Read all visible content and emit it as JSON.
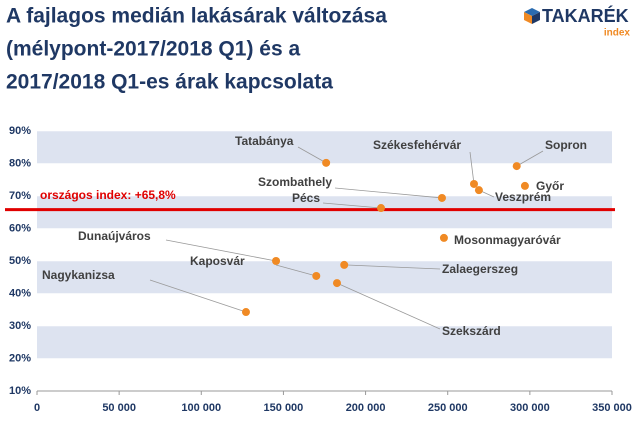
{
  "chart_data": {
    "type": "scatter",
    "title": [
      "A fajlagos medián lakásárak változása",
      "(mélypont-2017/2018 Q1) és a",
      "2017/2018 Q1-es árak kapcsolata"
    ],
    "logo": {
      "text": "TAKARÉK",
      "sub": "index"
    },
    "color": "#f08a24",
    "point_labels": [
      "Tatabánya",
      "Székesfehérvár",
      "Sopron",
      "Győr",
      "Veszprém",
      "Szombathely",
      "Pécs",
      "Mosonmagyaróvár",
      "Dunaújváros",
      "Zalaegerszeg",
      "Kaposvár",
      "Szekszárd",
      "Nagykanizsa"
    ],
    "x": [
      176000,
      266000,
      292000,
      297000,
      269000,
      246500,
      209400,
      247700,
      145500,
      187000,
      170000,
      182600,
      127200
    ],
    "values": [
      80.2,
      73.7,
      79.2,
      73.1,
      71.8,
      69.4,
      66.3,
      57.1,
      50,
      48.8,
      45.4,
      43.2,
      34.3
    ],
    "reference_line": {
      "value": 65.8,
      "label": "országos index: +65,8%",
      "color": "#e00000"
    },
    "xlim": [
      0,
      350000
    ],
    "xticks": [
      {
        "value": 0,
        "label": "0"
      },
      {
        "value": 50000,
        "label": "50 000"
      },
      {
        "value": 100000,
        "label": "100 000"
      },
      {
        "value": 150000,
        "label": "150 000"
      },
      {
        "value": 200000,
        "label": "200 000"
      },
      {
        "value": 250000,
        "label": "250 000"
      },
      {
        "value": 300000,
        "label": "300 000"
      },
      {
        "value": 350000,
        "label": "350 000"
      }
    ],
    "ylim": [
      10,
      90
    ],
    "yticks": [
      {
        "value": 10,
        "label": "10%"
      },
      {
        "value": 20,
        "label": "20%"
      },
      {
        "value": 30,
        "label": "30%"
      },
      {
        "value": 40,
        "label": "40%"
      },
      {
        "value": 50,
        "label": "50%"
      },
      {
        "value": 60,
        "label": "60%"
      },
      {
        "value": 70,
        "label": "70%"
      },
      {
        "value": 80,
        "label": "80%"
      },
      {
        "value": 90,
        "label": "90%"
      }
    ],
    "grid": true
  }
}
